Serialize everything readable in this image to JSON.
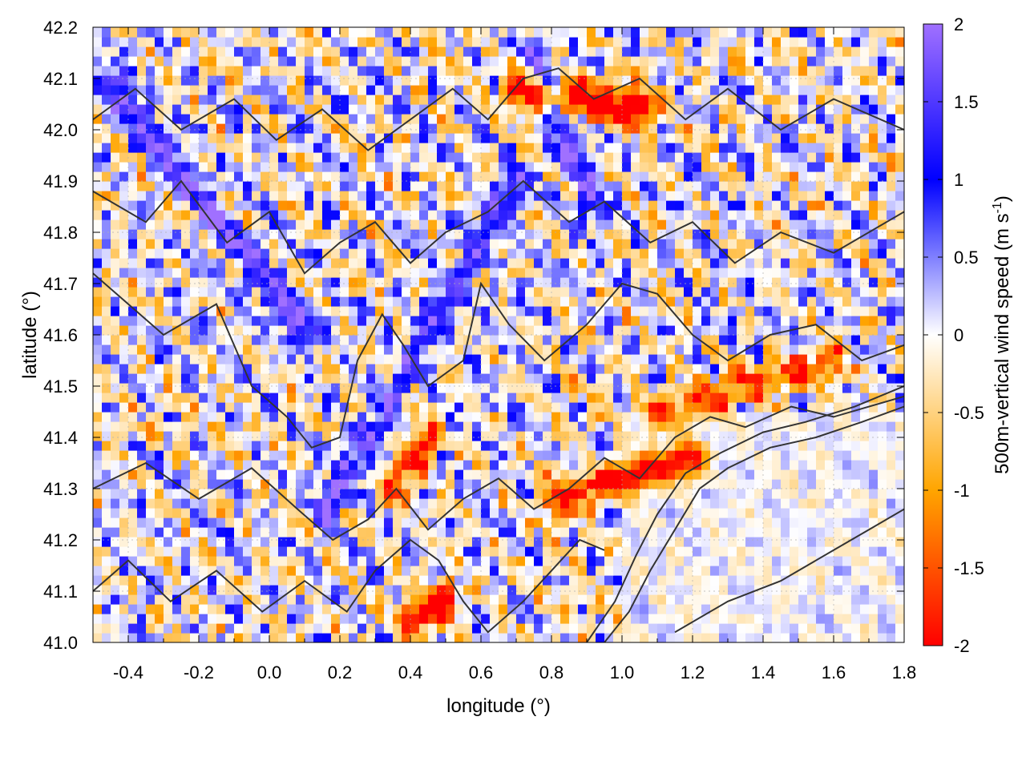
{
  "chart_data": {
    "type": "heatmap",
    "title": "",
    "xlabel": "longitude (°)",
    "ylabel": "latitude (°)",
    "xlim": [
      -0.5,
      1.8
    ],
    "ylim": [
      41.0,
      42.2
    ],
    "x_ticks": [
      -0.4,
      -0.2,
      0.0,
      0.2,
      0.4,
      0.6,
      0.8,
      1.0,
      1.2,
      1.4,
      1.6,
      1.8
    ],
    "x_tick_labels": [
      "-0.4",
      "-0.2",
      "0.0",
      "0.2",
      "0.4",
      "0.6",
      "0.8",
      "1.0",
      "1.2",
      "1.4",
      "1.6",
      "1.8"
    ],
    "y_ticks": [
      41.0,
      41.1,
      41.2,
      41.3,
      41.4,
      41.5,
      41.6,
      41.7,
      41.8,
      41.9,
      42.0,
      42.1,
      42.2
    ],
    "y_tick_labels": [
      "41.0",
      "41.1",
      "41.2",
      "41.3",
      "41.4",
      "41.5",
      "41.6",
      "41.7",
      "41.8",
      "41.9",
      "42.0",
      "42.1",
      "42.2"
    ],
    "grid": true,
    "colorbar": {
      "label_prefix": "500m-vertical wind speed (m s",
      "label_superscript": "-1",
      "label_suffix": ")",
      "range": [
        -2,
        2
      ],
      "ticks": [
        2,
        1.5,
        1,
        0.5,
        0,
        -0.5,
        -1,
        -1.5,
        -2
      ],
      "tick_labels": [
        "2",
        "1.5",
        "1",
        "0.5",
        "0",
        "-0.5",
        "-1",
        "-1.5",
        "-2"
      ],
      "colors": [
        {
          "value": -2.0,
          "color": "#ff0000"
        },
        {
          "value": -1.0,
          "color": "#ffa500"
        },
        {
          "value": 0.0,
          "color": "#ffffff"
        },
        {
          "value": 1.0,
          "color": "#0000ff"
        },
        {
          "value": 2.0,
          "color": "#a070ff"
        }
      ]
    },
    "field_features": [
      {
        "name": "updraft-ridge-northwest",
        "lon": [
          -0.45,
          0.1
        ],
        "lat": [
          42.1,
          41.6
        ],
        "w": 1.2
      },
      {
        "name": "updraft-ridge-central",
        "lon": [
          0.15,
          0.7
        ],
        "lat": [
          41.25,
          41.9
        ],
        "w": 1.0
      },
      {
        "name": "updraft-ridge-north",
        "lon": [
          0.75,
          0.92
        ],
        "lat": [
          42.15,
          41.85
        ],
        "w": 1.3
      },
      {
        "name": "downdraft-band-north",
        "lon": [
          0.7,
          1.05
        ],
        "lat": [
          42.08,
          42.04
        ],
        "w": -1.9
      },
      {
        "name": "downdraft-band-southcentral",
        "lon": [
          0.8,
          1.2
        ],
        "lat": [
          41.28,
          41.36
        ],
        "w": -1.5
      },
      {
        "name": "downdraft-band-east",
        "lon": [
          1.1,
          1.6
        ],
        "lat": [
          41.45,
          41.55
        ],
        "w": -1.1
      },
      {
        "name": "downdraft-spot-south",
        "lon": [
          0.4,
          0.5
        ],
        "lat": [
          41.05,
          41.08
        ],
        "w": -1.8
      },
      {
        "name": "downdraft-spot-central",
        "lon": [
          0.35,
          0.45
        ],
        "lat": [
          41.3,
          41.4
        ],
        "w": -1.4
      }
    ],
    "contours": [
      {
        "name": "terrain-contour-1",
        "points": [
          [
            -0.5,
            41.72
          ],
          [
            -0.3,
            41.6
          ],
          [
            -0.15,
            41.66
          ],
          [
            -0.05,
            41.5
          ],
          [
            0.05,
            41.44
          ],
          [
            0.12,
            41.38
          ],
          [
            0.2,
            41.4
          ],
          [
            0.25,
            41.55
          ],
          [
            0.32,
            41.64
          ],
          [
            0.38,
            41.58
          ],
          [
            0.45,
            41.5
          ],
          [
            0.55,
            41.55
          ],
          [
            0.6,
            41.7
          ],
          [
            0.68,
            41.62
          ],
          [
            0.78,
            41.55
          ],
          [
            0.9,
            41.62
          ],
          [
            1.0,
            41.7
          ],
          [
            1.1,
            41.68
          ],
          [
            1.2,
            41.6
          ],
          [
            1.3,
            41.55
          ],
          [
            1.42,
            41.6
          ],
          [
            1.55,
            41.62
          ],
          [
            1.68,
            41.55
          ],
          [
            1.8,
            41.58
          ]
        ]
      },
      {
        "name": "terrain-contour-2",
        "points": [
          [
            -0.5,
            41.88
          ],
          [
            -0.35,
            41.82
          ],
          [
            -0.25,
            41.9
          ],
          [
            -0.12,
            41.78
          ],
          [
            0.0,
            41.84
          ],
          [
            0.1,
            41.72
          ],
          [
            0.2,
            41.78
          ],
          [
            0.3,
            41.82
          ],
          [
            0.4,
            41.74
          ],
          [
            0.5,
            41.8
          ],
          [
            0.62,
            41.84
          ],
          [
            0.72,
            41.9
          ],
          [
            0.85,
            41.82
          ],
          [
            0.95,
            41.86
          ],
          [
            1.08,
            41.78
          ],
          [
            1.2,
            41.82
          ],
          [
            1.32,
            41.74
          ],
          [
            1.45,
            41.8
          ],
          [
            1.6,
            41.76
          ],
          [
            1.8,
            41.84
          ]
        ]
      },
      {
        "name": "terrain-contour-3",
        "points": [
          [
            -0.5,
            42.02
          ],
          [
            -0.38,
            42.08
          ],
          [
            -0.25,
            42.0
          ],
          [
            -0.1,
            42.06
          ],
          [
            0.02,
            41.98
          ],
          [
            0.15,
            42.04
          ],
          [
            0.28,
            41.96
          ],
          [
            0.4,
            42.02
          ],
          [
            0.52,
            42.08
          ],
          [
            0.62,
            42.02
          ],
          [
            0.72,
            42.1
          ],
          [
            0.82,
            42.12
          ],
          [
            0.92,
            42.06
          ],
          [
            1.05,
            42.1
          ],
          [
            1.18,
            42.02
          ],
          [
            1.3,
            42.08
          ],
          [
            1.45,
            42.0
          ],
          [
            1.6,
            42.06
          ],
          [
            1.8,
            42.0
          ]
        ]
      },
      {
        "name": "terrain-contour-4",
        "points": [
          [
            -0.5,
            41.3
          ],
          [
            -0.35,
            41.35
          ],
          [
            -0.2,
            41.28
          ],
          [
            -0.05,
            41.34
          ],
          [
            0.08,
            41.26
          ],
          [
            0.18,
            41.2
          ],
          [
            0.28,
            41.24
          ],
          [
            0.36,
            41.3
          ],
          [
            0.45,
            41.22
          ],
          [
            0.55,
            41.28
          ],
          [
            0.65,
            41.32
          ],
          [
            0.75,
            41.26
          ],
          [
            0.85,
            41.3
          ],
          [
            0.95,
            41.36
          ],
          [
            1.05,
            41.32
          ],
          [
            1.15,
            41.4
          ],
          [
            1.25,
            41.44
          ],
          [
            1.35,
            41.42
          ],
          [
            1.48,
            41.46
          ],
          [
            1.6,
            41.44
          ],
          [
            1.8,
            41.48
          ]
        ]
      },
      {
        "name": "terrain-contour-5",
        "points": [
          [
            -0.5,
            41.1
          ],
          [
            -0.4,
            41.16
          ],
          [
            -0.28,
            41.08
          ],
          [
            -0.15,
            41.14
          ],
          [
            -0.02,
            41.06
          ],
          [
            0.1,
            41.12
          ],
          [
            0.22,
            41.06
          ],
          [
            0.3,
            41.14
          ],
          [
            0.4,
            41.2
          ],
          [
            0.48,
            41.16
          ],
          [
            0.55,
            41.08
          ],
          [
            0.62,
            41.02
          ],
          [
            0.72,
            41.08
          ],
          [
            0.8,
            41.14
          ],
          [
            0.88,
            41.2
          ],
          [
            0.95,
            41.18
          ]
        ]
      },
      {
        "name": "coast-contour-1",
        "points": [
          [
            0.95,
            41.0
          ],
          [
            1.02,
            41.06
          ],
          [
            1.08,
            41.14
          ],
          [
            1.15,
            41.22
          ],
          [
            1.22,
            41.3
          ],
          [
            1.3,
            41.34
          ],
          [
            1.42,
            41.38
          ],
          [
            1.55,
            41.4
          ],
          [
            1.68,
            41.43
          ],
          [
            1.8,
            41.46
          ]
        ]
      },
      {
        "name": "coast-contour-2",
        "points": [
          [
            0.9,
            41.0
          ],
          [
            0.98,
            41.08
          ],
          [
            1.04,
            41.17
          ],
          [
            1.1,
            41.25
          ],
          [
            1.18,
            41.33
          ],
          [
            1.28,
            41.37
          ],
          [
            1.4,
            41.41
          ],
          [
            1.52,
            41.43
          ],
          [
            1.66,
            41.46
          ],
          [
            1.8,
            41.5
          ]
        ]
      },
      {
        "name": "coast-contour-3",
        "points": [
          [
            1.15,
            41.02
          ],
          [
            1.3,
            41.08
          ],
          [
            1.45,
            41.12
          ],
          [
            1.6,
            41.18
          ],
          [
            1.7,
            41.22
          ],
          [
            1.8,
            41.26
          ]
        ]
      }
    ]
  }
}
